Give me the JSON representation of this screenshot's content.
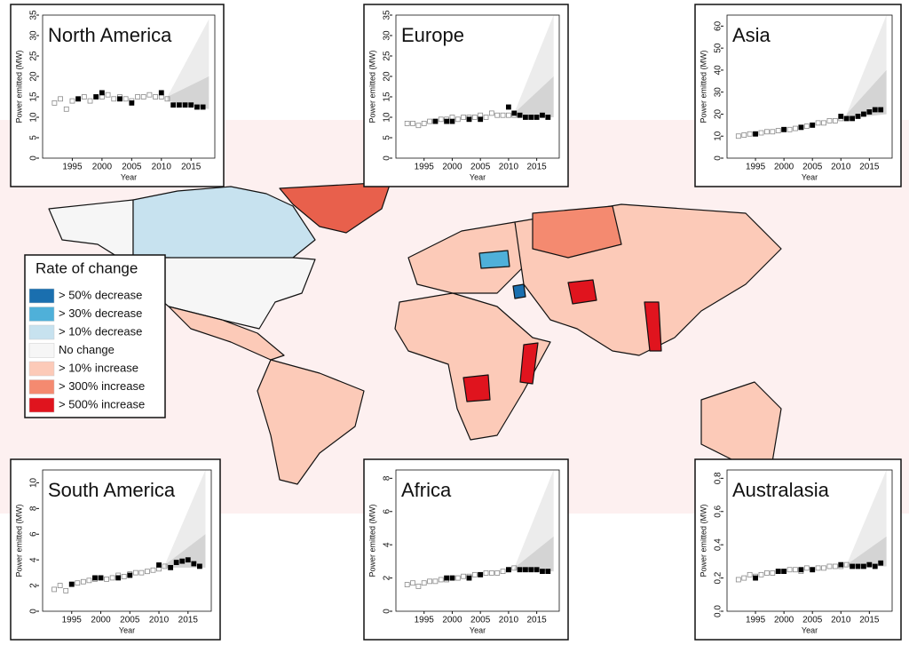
{
  "chart_data": [
    {
      "type": "scatter",
      "title": "North America",
      "y_label": "Power emitted (MW)",
      "x_label": "Year",
      "xlim": [
        1990,
        2019
      ],
      "xticks": [
        1995,
        2000,
        2005,
        2010,
        2015
      ],
      "ylim": [
        0,
        35
      ],
      "yticks": [
        0,
        5,
        10,
        15,
        20,
        25,
        30,
        35
      ],
      "series": [
        {
          "color": "#8a8a8a",
          "marker": "open",
          "x": [
            1992,
            1993,
            1994,
            1995,
            1996,
            1997,
            1998,
            1999,
            2000,
            2001,
            2002,
            2003,
            2004,
            2005,
            2006,
            2007,
            2008,
            2009,
            2010,
            2011
          ],
          "values": [
            13.5,
            14.5,
            12,
            14,
            14.5,
            15,
            14,
            15,
            15,
            15.5,
            14.5,
            15,
            14.5,
            14,
            15,
            15,
            15.5,
            15,
            15,
            14.5
          ]
        },
        {
          "color": "#000000",
          "marker": "filled",
          "x": [
            1996,
            1999,
            2000,
            2003,
            2005,
            2010,
            2012,
            2013,
            2014,
            2015,
            2016,
            2017
          ],
          "values": [
            14.5,
            15,
            16,
            14.5,
            13.5,
            16,
            13,
            13,
            13,
            13,
            12.5,
            12.5
          ]
        }
      ],
      "projection": {
        "x": [
          2011,
          2018
        ],
        "upper": [
          15,
          34
        ],
        "middle": [
          15,
          20
        ],
        "lower": [
          14,
          12
        ]
      }
    },
    {
      "type": "scatter",
      "title": "Europe",
      "y_label": "Power emitted (MW)",
      "x_label": "Year",
      "xlim": [
        1990,
        2019
      ],
      "xticks": [
        1995,
        2000,
        2005,
        2010,
        2015
      ],
      "ylim": [
        0,
        35
      ],
      "yticks": [
        0,
        5,
        10,
        15,
        20,
        25,
        30,
        35
      ],
      "series": [
        {
          "color": "#8a8a8a",
          "marker": "open",
          "x": [
            1992,
            1993,
            1994,
            1995,
            1996,
            1997,
            1998,
            1999,
            2000,
            2001,
            2002,
            2003,
            2004,
            2005,
            2006,
            2007,
            2008,
            2009,
            2010,
            2011
          ],
          "values": [
            8.5,
            8.5,
            8,
            8.5,
            9,
            9,
            9.5,
            9.5,
            10,
            9.5,
            10,
            10,
            10,
            10.5,
            10,
            11,
            10.5,
            10.5,
            10.5,
            10.5
          ]
        },
        {
          "color": "#000000",
          "marker": "filled",
          "x": [
            1997,
            1999,
            2000,
            2003,
            2005,
            2010,
            2011,
            2012,
            2013,
            2014,
            2015,
            2016,
            2017
          ],
          "values": [
            9,
            9,
            9,
            9.5,
            9.5,
            12.5,
            11,
            10.5,
            10,
            10,
            10,
            10.5,
            10
          ]
        }
      ],
      "projection": {
        "x": [
          2011,
          2018
        ],
        "upper": [
          11,
          35
        ],
        "middle": [
          11,
          20
        ],
        "lower": [
          10.5,
          10
        ]
      }
    },
    {
      "type": "scatter",
      "title": "Asia",
      "y_label": "Power emitted (MW)",
      "x_label": "Year",
      "xlim": [
        1990,
        2019
      ],
      "xticks": [
        1995,
        2000,
        2005,
        2010,
        2015
      ],
      "ylim": [
        0,
        65
      ],
      "yticks": [
        0,
        10,
        20,
        30,
        40,
        50,
        60
      ],
      "series": [
        {
          "color": "#8a8a8a",
          "marker": "open",
          "x": [
            1992,
            1993,
            1994,
            1995,
            1996,
            1997,
            1998,
            1999,
            2000,
            2001,
            2002,
            2003,
            2004,
            2005,
            2006,
            2007,
            2008,
            2009,
            2010,
            2011
          ],
          "values": [
            10,
            10.5,
            11,
            11,
            11.5,
            12,
            12,
            12.5,
            13,
            13,
            13.5,
            14,
            14.5,
            15,
            16,
            16,
            17,
            17,
            18,
            18
          ]
        },
        {
          "color": "#000000",
          "marker": "filled",
          "x": [
            1995,
            2000,
            2003,
            2005,
            2010,
            2011,
            2012,
            2013,
            2014,
            2015,
            2016,
            2017
          ],
          "values": [
            11,
            13,
            14,
            15,
            19,
            18,
            18,
            19,
            20,
            21,
            22,
            22
          ]
        }
      ],
      "projection": {
        "x": [
          2011,
          2018
        ],
        "upper": [
          20,
          65
        ],
        "middle": [
          20,
          40
        ],
        "lower": [
          18,
          20
        ]
      }
    },
    {
      "type": "scatter",
      "title": "South America",
      "y_label": "Power emitted (MW)",
      "x_label": "Year",
      "xlim": [
        1990,
        2019
      ],
      "xticks": [
        1995,
        2000,
        2005,
        2010,
        2015
      ],
      "ylim": [
        0,
        11
      ],
      "yticks": [
        0,
        2,
        4,
        6,
        8,
        10
      ],
      "series": [
        {
          "color": "#8a8a8a",
          "marker": "open",
          "x": [
            1992,
            1993,
            1994,
            1995,
            1996,
            1997,
            1998,
            1999,
            2000,
            2001,
            2002,
            2003,
            2004,
            2005,
            2006,
            2007,
            2008,
            2009,
            2010,
            2011
          ],
          "values": [
            1.7,
            2,
            1.6,
            2.1,
            2.2,
            2.3,
            2.4,
            2.5,
            2.6,
            2.5,
            2.6,
            2.8,
            2.7,
            2.9,
            3,
            3,
            3.1,
            3.2,
            3.3,
            3.5
          ]
        },
        {
          "color": "#000000",
          "marker": "filled",
          "x": [
            1995,
            1999,
            2000,
            2003,
            2005,
            2010,
            2012,
            2013,
            2014,
            2015,
            2016,
            2017
          ],
          "values": [
            2.1,
            2.6,
            2.6,
            2.6,
            2.8,
            3.6,
            3.4,
            3.8,
            3.9,
            4,
            3.7,
            3.5
          ]
        }
      ],
      "projection": {
        "x": [
          2011,
          2018
        ],
        "upper": [
          3.6,
          11
        ],
        "middle": [
          3.6,
          6
        ],
        "lower": [
          3.4,
          3.4
        ]
      }
    },
    {
      "type": "scatter",
      "title": "Africa",
      "y_label": "Power emitted (MW)",
      "x_label": "Year",
      "xlim": [
        1990,
        2019
      ],
      "xticks": [
        1995,
        2000,
        2005,
        2010,
        2015
      ],
      "ylim": [
        0,
        8.5
      ],
      "yticks": [
        0,
        2,
        4,
        6,
        8
      ],
      "series": [
        {
          "color": "#8a8a8a",
          "marker": "open",
          "x": [
            1992,
            1993,
            1994,
            1995,
            1996,
            1997,
            1998,
            1999,
            2000,
            2001,
            2002,
            2003,
            2004,
            2005,
            2006,
            2007,
            2008,
            2009,
            2010,
            2011
          ],
          "values": [
            1.6,
            1.7,
            1.5,
            1.7,
            1.8,
            1.8,
            1.9,
            1.9,
            2,
            2,
            2.1,
            2.1,
            2.2,
            2.2,
            2.3,
            2.3,
            2.3,
            2.4,
            2.5,
            2.6
          ]
        },
        {
          "color": "#000000",
          "marker": "filled",
          "x": [
            1999,
            2000,
            2003,
            2005,
            2010,
            2012,
            2013,
            2014,
            2015,
            2016,
            2017
          ],
          "values": [
            2,
            2,
            2,
            2.2,
            2.5,
            2.5,
            2.5,
            2.5,
            2.5,
            2.4,
            2.4
          ]
        }
      ],
      "projection": {
        "x": [
          2011,
          2018
        ],
        "upper": [
          2.6,
          8.5
        ],
        "middle": [
          2.6,
          4.5
        ],
        "lower": [
          2.5,
          2.4
        ]
      }
    },
    {
      "type": "scatter",
      "title": "Australasia",
      "y_label": "Power emitted (MW)",
      "x_label": "Year",
      "xlim": [
        1990,
        2019
      ],
      "xticks": [
        1995,
        2000,
        2005,
        2010,
        2015
      ],
      "ylim": [
        0,
        0.85
      ],
      "yticks": [
        {
          "value": 0,
          "label": "0.0"
        },
        0.2,
        0.4,
        0.6,
        0.8
      ],
      "series": [
        {
          "color": "#8a8a8a",
          "marker": "open",
          "x": [
            1992,
            1993,
            1994,
            1995,
            1996,
            1997,
            1998,
            1999,
            2000,
            2001,
            2002,
            2003,
            2004,
            2005,
            2006,
            2007,
            2008,
            2009,
            2010,
            2011
          ],
          "values": [
            0.19,
            0.2,
            0.22,
            0.21,
            0.22,
            0.23,
            0.23,
            0.24,
            0.24,
            0.25,
            0.25,
            0.24,
            0.26,
            0.25,
            0.26,
            0.26,
            0.27,
            0.27,
            0.27,
            0.28
          ]
        },
        {
          "color": "#000000",
          "marker": "filled",
          "x": [
            1995,
            1999,
            2000,
            2003,
            2005,
            2010,
            2012,
            2013,
            2014,
            2015,
            2016,
            2017
          ],
          "values": [
            0.2,
            0.24,
            0.24,
            0.25,
            0.25,
            0.28,
            0.27,
            0.27,
            0.27,
            0.28,
            0.27,
            0.29
          ]
        }
      ],
      "projection": {
        "x": [
          2011,
          2018
        ],
        "upper": [
          0.28,
          0.85
        ],
        "middle": [
          0.28,
          0.45
        ],
        "lower": [
          0.27,
          0.27
        ]
      }
    }
  ],
  "map": {
    "legend": {
      "title": "Rate of change",
      "entries": [
        {
          "label": "> 50% decrease",
          "color": "#1a6faf"
        },
        {
          "label": "> 30% decrease",
          "color": "#4fb0d9"
        },
        {
          "label": "> 10% decrease",
          "color": "#c7e2ef"
        },
        {
          "label": "No change",
          "color": "#f6f6f6"
        },
        {
          "label": "> 10% increase",
          "color": "#fccab8"
        },
        {
          "label": "> 300% increase",
          "color": "#f48a70"
        },
        {
          "label": "> 500% increase",
          "color": "#e0141e"
        }
      ]
    }
  }
}
